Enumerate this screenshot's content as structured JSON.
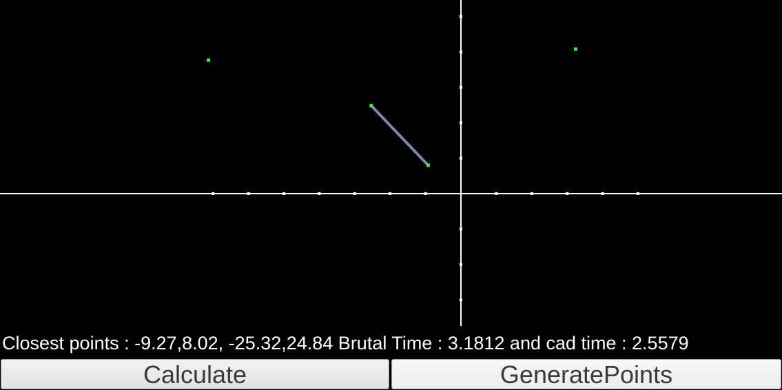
{
  "status_line": "Closest points : -9.27,8.02, -25.32,24.84 Brutal Time : 3.1812 and cad time : 2.5579",
  "buttons": {
    "calculate": "Calculate",
    "generate": "GeneratePoints"
  },
  "colors": {
    "background": "#000000",
    "axes": "#ffffff",
    "point": "#3ee83e",
    "closest_link": "#7a8aa8"
  },
  "points": [
    {
      "x": -25.32,
      "y": 24.84
    },
    {
      "x": -9.27,
      "y": 8.02
    },
    {
      "x": -71.3,
      "y": 37.7
    },
    {
      "x": 32.4,
      "y": 40.8
    }
  ],
  "closest_pair": [
    0,
    1
  ]
}
